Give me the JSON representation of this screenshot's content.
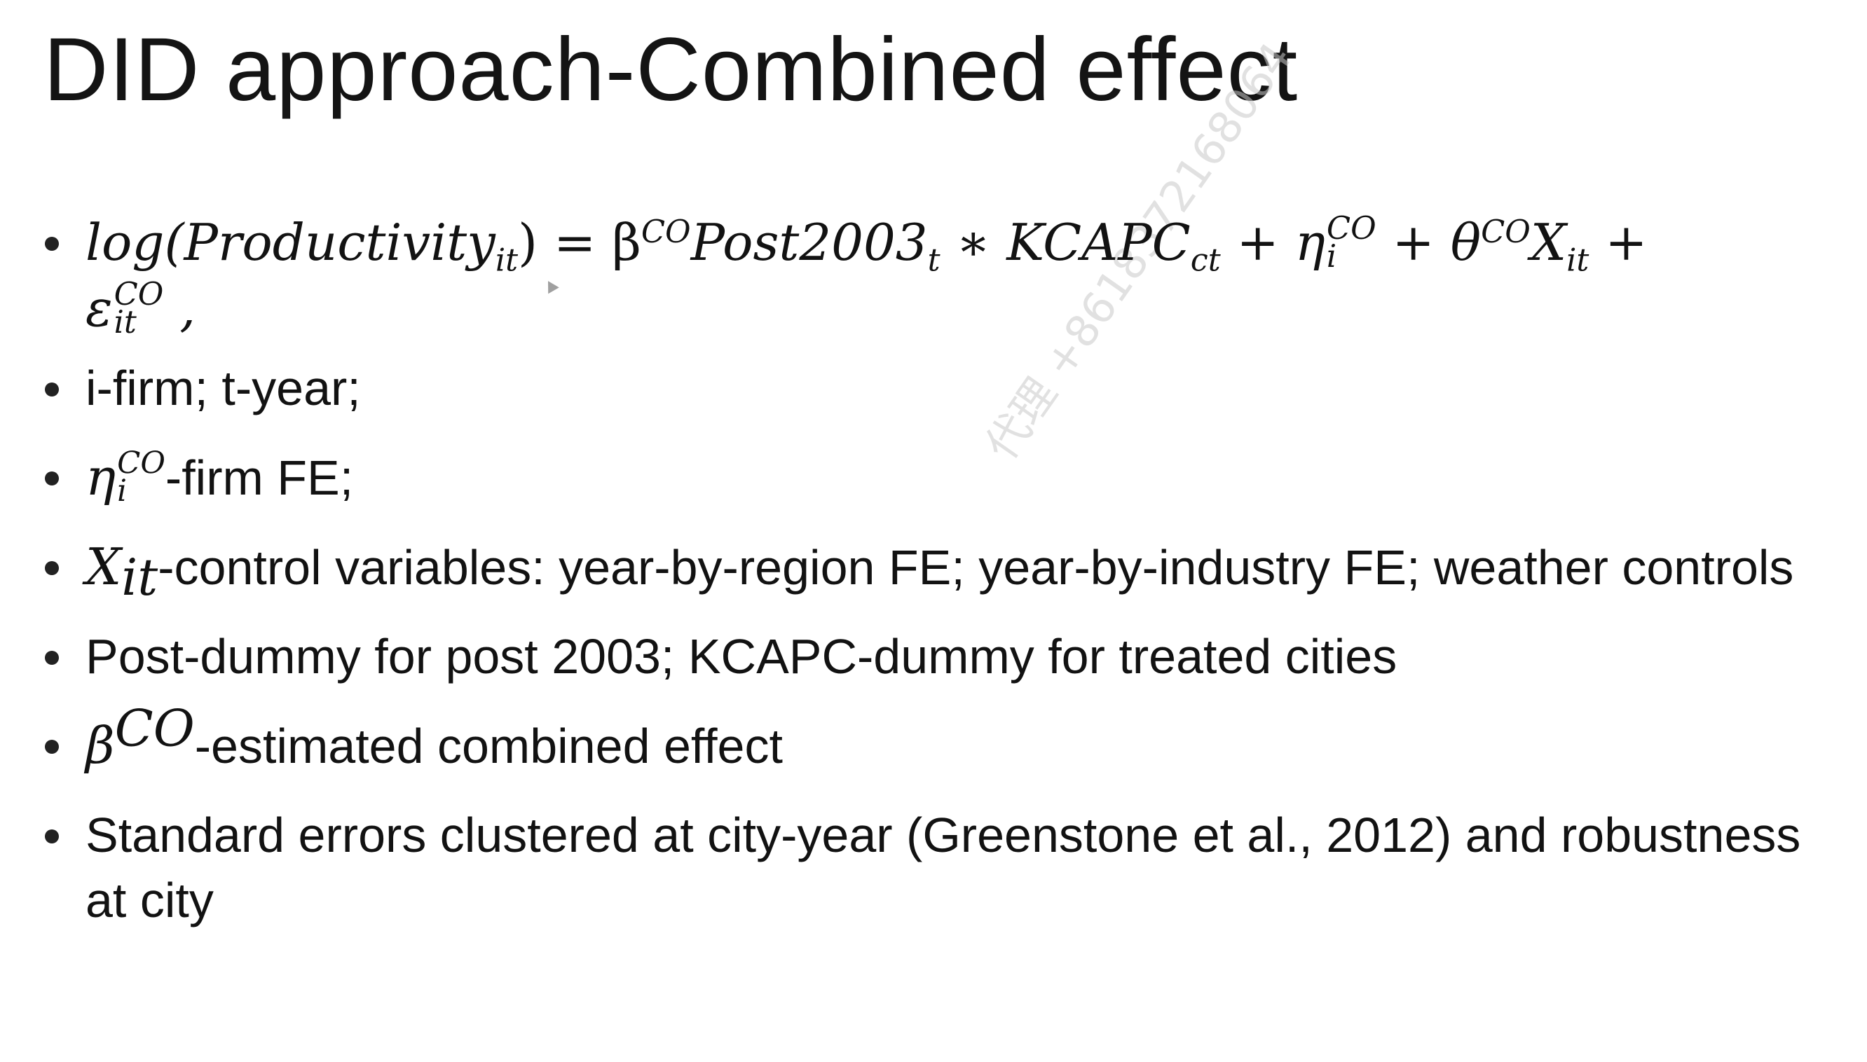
{
  "slide": {
    "title": "DID approach-Combined effect",
    "watermark": "代理 +8618372168064",
    "bullets": {
      "b1": {
        "lhs": "log(Productivity",
        "lhs_sub": "it",
        "lhs_close": ") = β",
        "beta_sup": "CO",
        "post": "Post2003",
        "post_sub": "t",
        "times": " ∗ KCAPC",
        "kcapc_sub": "ct",
        "plus_eta": " + η",
        "eta_sup": "CO",
        "eta_sub": "i",
        "plus_theta": " + θ",
        "theta_sup": "CO",
        "x": "X",
        "x_sub": "it",
        "plus_end": " +",
        "eps": "ε",
        "eps_sup": "CO",
        "eps_sub": "it",
        "comma": " ,"
      },
      "b2": "i-firm; t-year;",
      "b3": {
        "eta": "η",
        "eta_sup": "CO",
        "eta_sub": "i",
        "text": "-firm FE;"
      },
      "b4": {
        "x": "X",
        "x_sub": "it",
        "text": "-control variables: year-by-region FE; year-by-industry FE; weather controls"
      },
      "b5": "Post-dummy for post 2003; KCAPC-dummy for treated cities",
      "b6": {
        "beta": "β",
        "beta_sup": "CO",
        "text": "-estimated combined effect"
      },
      "b7": "Standard errors clustered at city-year (Greenstone et al., 2012) and robustness at city"
    }
  }
}
